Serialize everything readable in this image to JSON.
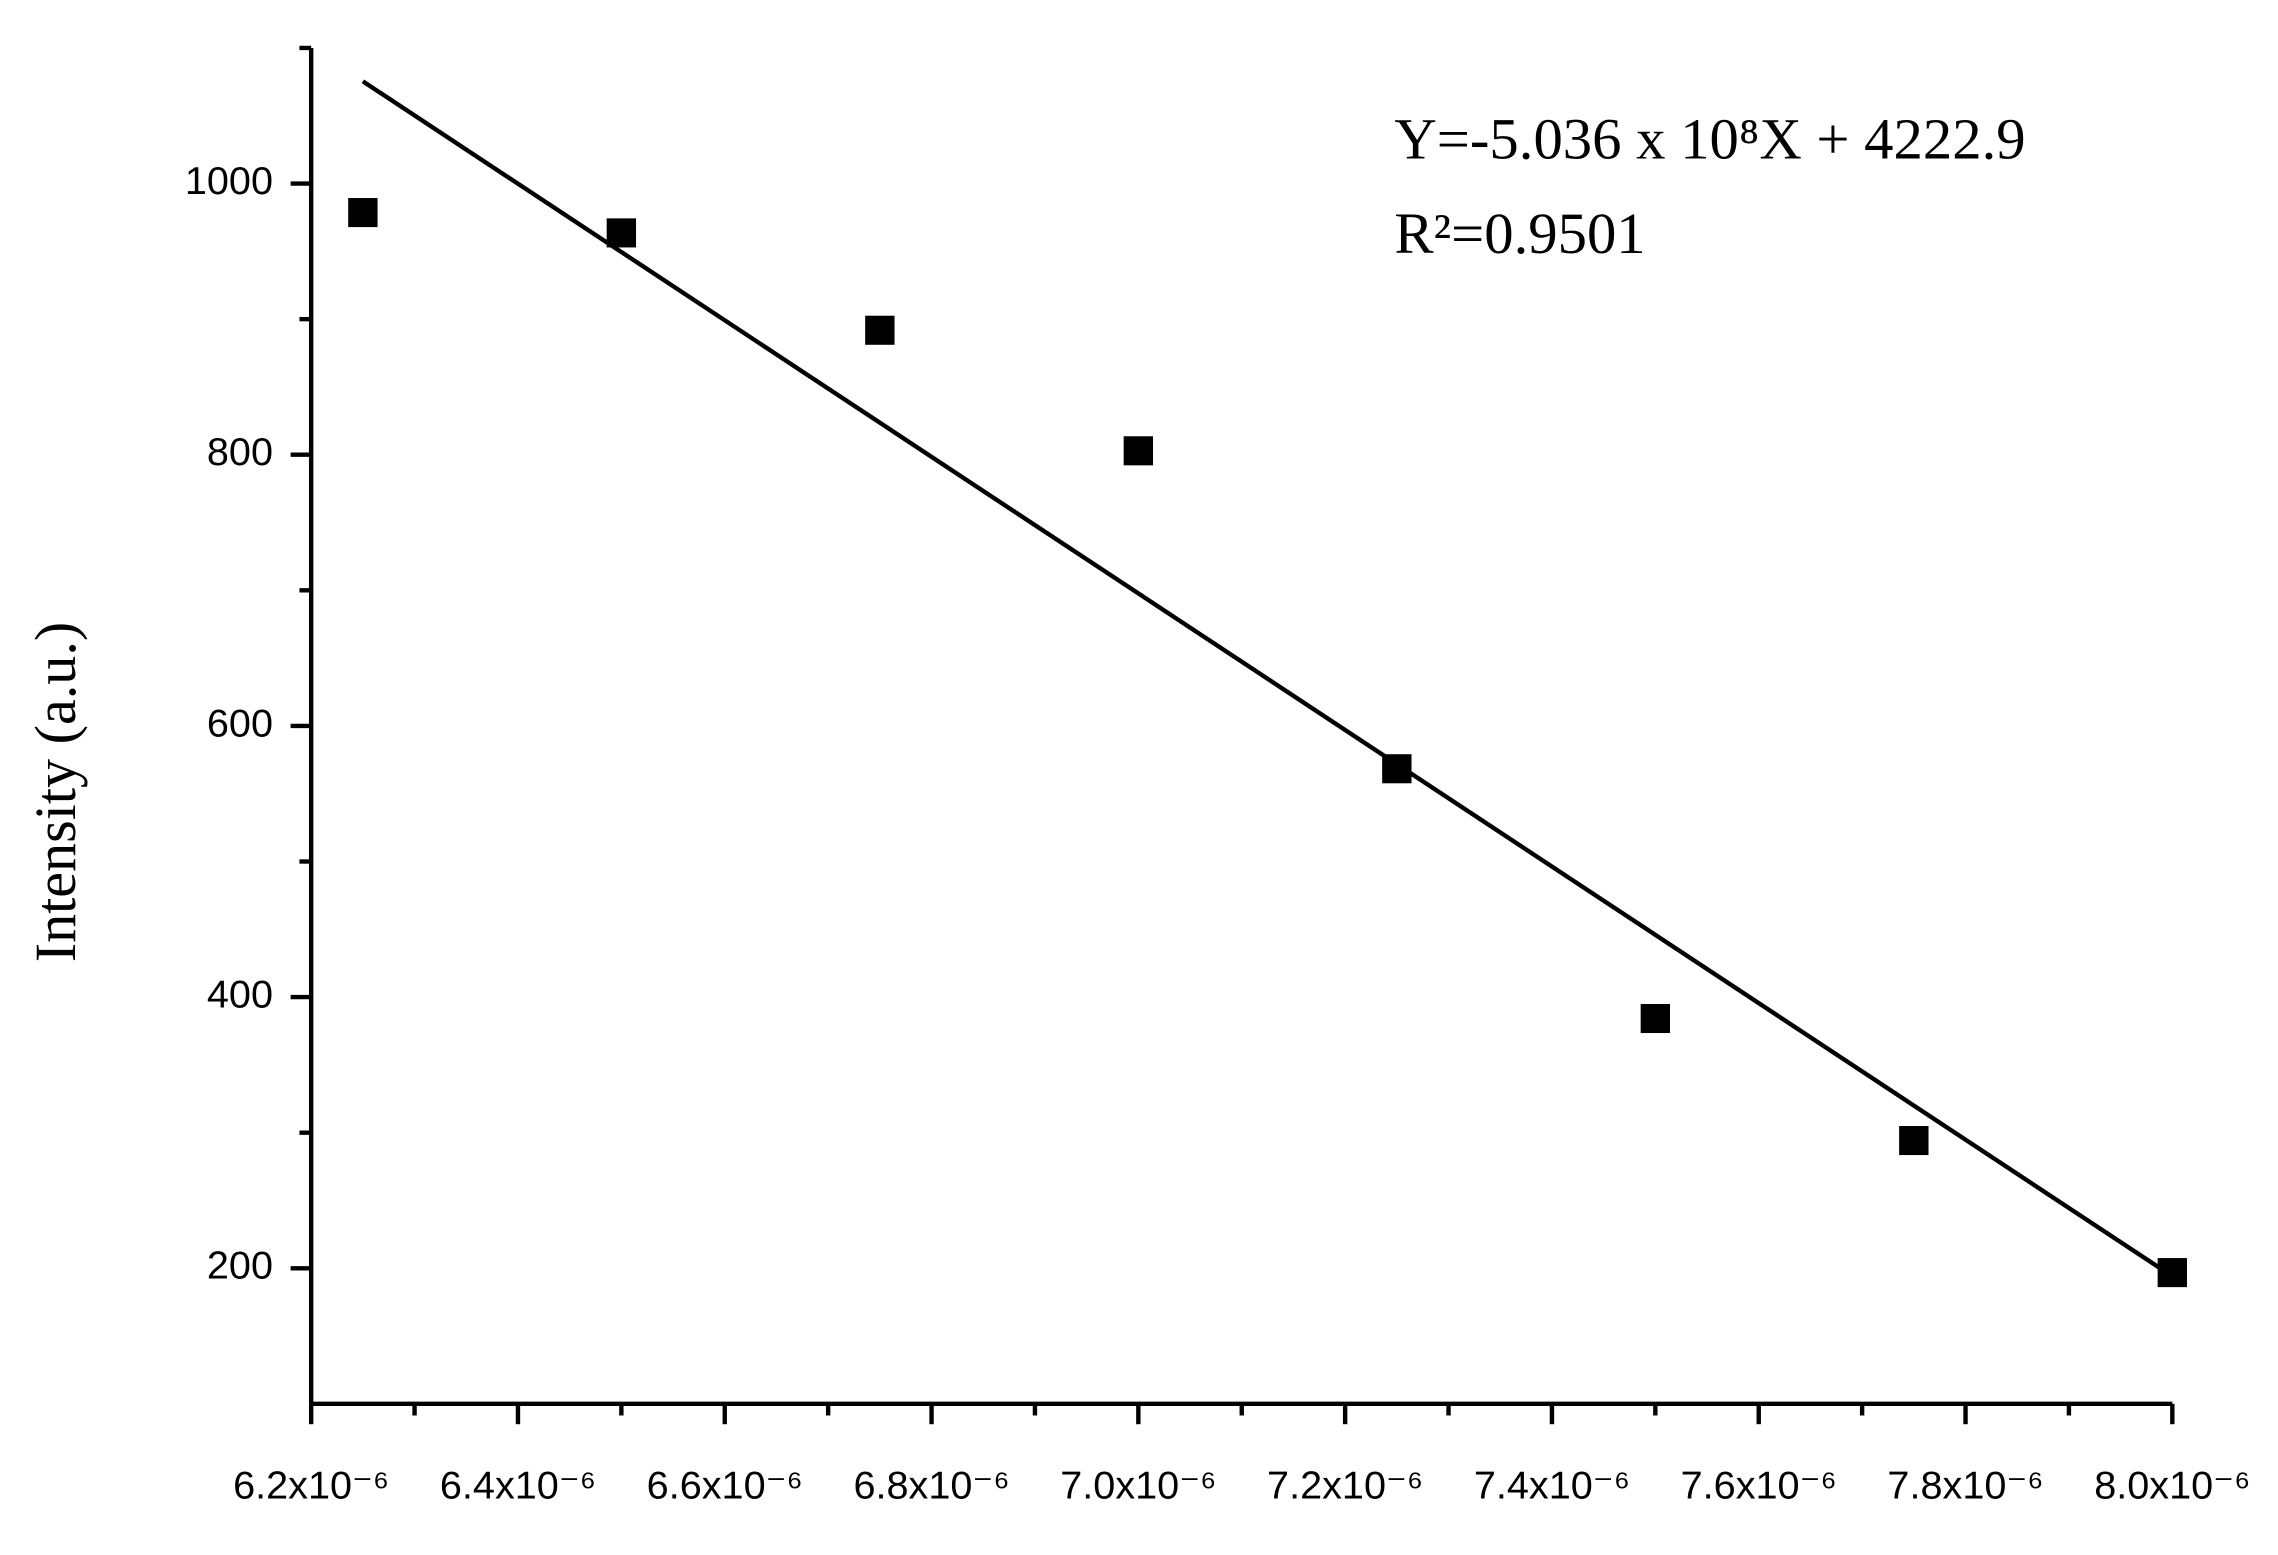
{
  "chart_data": {
    "type": "scatter",
    "y_label": "Intensity (a.u.)",
    "annotations": [
      "Y=-5.036 x 10⁸X + 4222.9",
      "R²=0.9501"
    ],
    "xlim": [
      6.2e-06,
      8e-06
    ],
    "ylim": [
      100,
      1100
    ],
    "xticks": [
      {
        "value": 6.2e-06,
        "label": "6.2x10⁻⁶"
      },
      {
        "value": 6.4e-06,
        "label": "6.4x10⁻⁶"
      },
      {
        "value": 6.6e-06,
        "label": "6.6x10⁻⁶"
      },
      {
        "value": 6.8e-06,
        "label": "6.8x10⁻⁶"
      },
      {
        "value": 7e-06,
        "label": "7.0x10⁻⁶"
      },
      {
        "value": 7.2e-06,
        "label": "7.2x10⁻⁶"
      },
      {
        "value": 7.4e-06,
        "label": "7.4x10⁻⁶"
      },
      {
        "value": 7.6e-06,
        "label": "7.6x10⁻⁶"
      },
      {
        "value": 7.8e-06,
        "label": "7.8x10⁻⁶"
      },
      {
        "value": 8e-06,
        "label": "8.0x10⁻⁶"
      }
    ],
    "xminorticks": [
      6.3e-06,
      6.5e-06,
      6.7e-06,
      6.9e-06,
      7.1e-06,
      7.3e-06,
      7.5e-06,
      7.7e-06,
      7.9e-06
    ],
    "yticks": [
      200,
      400,
      600,
      800,
      1000
    ],
    "yminorticks": [
      300,
      500,
      700,
      900,
      1100
    ],
    "series": [
      {
        "kind": "points",
        "color": "#000000",
        "x": [
          6.25e-06,
          6.5e-06,
          6.75e-06,
          7e-06,
          7.25e-06,
          7.5e-06,
          7.75e-06,
          8e-06
        ],
        "values": [
          978.6,
          963.6,
          891.8,
          802.9,
          568.4,
          384.2,
          294.2,
          196.8
        ]
      },
      {
        "kind": "fit",
        "color": "#000000",
        "x": [
          6.25e-06,
          8e-06
        ],
        "values": [
          1075.4,
          194.1
        ]
      }
    ]
  }
}
